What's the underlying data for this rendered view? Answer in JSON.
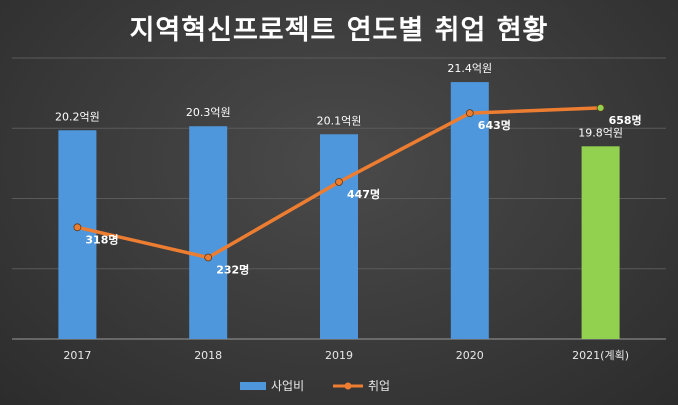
{
  "chart_data": {
    "type": "bar",
    "title": "지역혁신프로젝트 연도별 취업 현황",
    "categories": [
      "2017",
      "2018",
      "2019",
      "2020",
      "2021(계획)"
    ],
    "series": [
      {
        "name": "사업비",
        "kind": "bar",
        "values": [
          20.2,
          20.3,
          20.1,
          21.4,
          19.8
        ],
        "labels": [
          "20.2억원",
          "20.3억원",
          "20.1억원",
          "21.4억원",
          "19.8억원"
        ],
        "colors": [
          "#4f97dc",
          "#4f97dc",
          "#4f97dc",
          "#4f97dc",
          "#92d050"
        ]
      },
      {
        "name": "취업",
        "kind": "line",
        "values": [
          318,
          232,
          447,
          643,
          658
        ],
        "labels": [
          "318명",
          "232명",
          "447명",
          "643명",
          "658명"
        ],
        "color": "#ed7d31",
        "marker_colors": [
          "#ed7d31",
          "#ed7d31",
          "#ed7d31",
          "#ed7d31",
          "#92d050"
        ]
      }
    ],
    "bar_axis_range": [
      15,
      22
    ],
    "line_axis_range": [
      0,
      800
    ],
    "gridlines": true,
    "legend_position": "bottom"
  }
}
